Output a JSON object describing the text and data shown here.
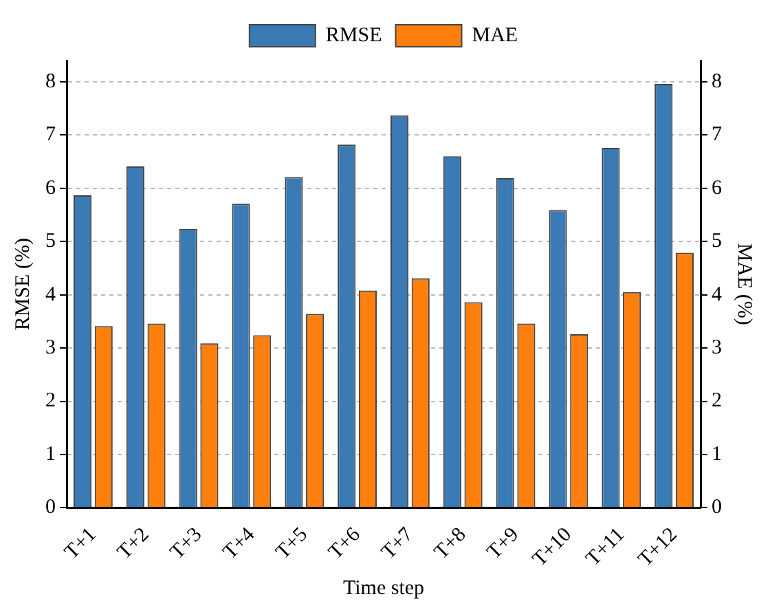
{
  "chart_data": {
    "type": "bar",
    "xlabel": "Time step",
    "ylabel": "RMSE (%)",
    "y2label": "MAE (%)",
    "categories": [
      "T+1",
      "T+2",
      "T+3",
      "T+4",
      "T+5",
      "T+6",
      "T+7",
      "T+8",
      "T+9",
      "T+10",
      "T+11",
      "T+12"
    ],
    "series": [
      {
        "name": "RMSE",
        "color": "#3a7ab5",
        "values": [
          5.87,
          6.41,
          5.24,
          5.71,
          6.21,
          6.82,
          7.37,
          6.6,
          6.19,
          5.59,
          6.76,
          7.96
        ]
      },
      {
        "name": "MAE",
        "color": "#ff7f0e",
        "axis": "y2",
        "values": [
          3.41,
          3.46,
          3.09,
          3.24,
          3.64,
          4.08,
          4.31,
          3.86,
          3.46,
          3.26,
          4.05,
          4.79
        ]
      }
    ],
    "ylim": [
      0,
      8.4
    ],
    "yticks": [
      0,
      1,
      2,
      3,
      4,
      5,
      6,
      7,
      8
    ],
    "y2lim": [
      0,
      8.4
    ],
    "y2ticks": [
      0,
      1,
      2,
      3,
      4,
      5,
      6,
      7,
      8
    ],
    "grid": "y",
    "legend": "top"
  }
}
